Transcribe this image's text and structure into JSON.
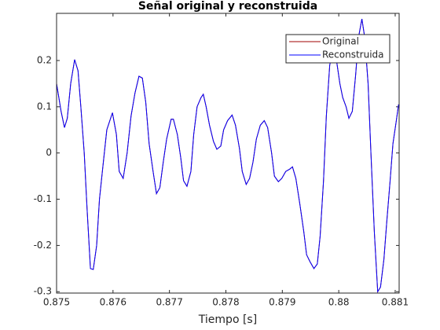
{
  "chart_data": {
    "type": "line",
    "title": "Señal original y reconstruida",
    "xlabel": "Tiempo [s]",
    "x": [
      0.875,
      0.87508,
      0.87514,
      0.87519,
      0.87525,
      0.87532,
      0.87538,
      0.87543,
      0.87549,
      0.87554,
      0.8756,
      0.87565,
      0.87571,
      0.87576,
      0.87582,
      0.87589,
      0.87599,
      0.87606,
      0.87611,
      0.87618,
      0.87625,
      0.87632,
      0.87639,
      0.87646,
      0.87652,
      0.87658,
      0.87664,
      0.87671,
      0.87677,
      0.87683,
      0.87689,
      0.87695,
      0.87703,
      0.87707,
      0.87714,
      0.8772,
      0.87725,
      0.87731,
      0.87738,
      0.87743,
      0.87749,
      0.87756,
      0.8776,
      0.87765,
      0.87771,
      0.87778,
      0.87784,
      0.87791,
      0.87796,
      0.87803,
      0.87811,
      0.87817,
      0.87824,
      0.87829,
      0.87836,
      0.87842,
      0.87848,
      0.87854,
      0.87861,
      0.87868,
      0.87874,
      0.87881,
      0.87886,
      0.87893,
      0.87899,
      0.87906,
      0.87913,
      0.87918,
      0.87924,
      0.87931,
      0.87938,
      0.87943,
      0.87949,
      0.87956,
      0.87962,
      0.87967,
      0.87973,
      0.87978,
      0.87984,
      0.87991,
      0.87996,
      0.88002,
      0.88007,
      0.88013,
      0.88018,
      0.88024,
      0.8803,
      0.88035,
      0.88041,
      0.88046,
      0.88052,
      0.88057,
      0.88063,
      0.88069,
      0.88074,
      0.8808,
      0.88085,
      0.88091,
      0.88096,
      0.88102,
      0.88106
    ],
    "series": [
      {
        "name": "Original",
        "color": "#a00000",
        "values": [
          0.15,
          0.09,
          0.055,
          0.075,
          0.15,
          0.202,
          0.178,
          0.1,
          0.0,
          -0.12,
          -0.25,
          -0.252,
          -0.2,
          -0.1,
          -0.03,
          0.05,
          0.087,
          0.04,
          -0.04,
          -0.055,
          0.0,
          0.08,
          0.13,
          0.166,
          0.162,
          0.11,
          0.02,
          -0.04,
          -0.088,
          -0.075,
          -0.02,
          0.03,
          0.073,
          0.073,
          0.04,
          -0.01,
          -0.06,
          -0.072,
          -0.04,
          0.04,
          0.1,
          0.12,
          0.127,
          0.1,
          0.06,
          0.025,
          0.008,
          0.015,
          0.05,
          0.07,
          0.082,
          0.06,
          0.01,
          -0.04,
          -0.068,
          -0.055,
          -0.02,
          0.03,
          0.06,
          0.07,
          0.055,
          0.0,
          -0.05,
          -0.062,
          -0.055,
          -0.04,
          -0.035,
          -0.03,
          -0.055,
          -0.11,
          -0.17,
          -0.22,
          -0.235,
          -0.25,
          -0.24,
          -0.18,
          -0.06,
          0.08,
          0.19,
          0.23,
          0.2,
          0.15,
          0.12,
          0.1,
          0.075,
          0.09,
          0.17,
          0.25,
          0.29,
          0.25,
          0.15,
          0.0,
          -0.17,
          -0.3,
          -0.29,
          -0.23,
          -0.15,
          -0.06,
          0.02,
          0.07,
          0.105
        ]
      },
      {
        "name": "Reconstruida",
        "color": "#0000ff",
        "values": [
          0.15,
          0.09,
          0.055,
          0.075,
          0.15,
          0.202,
          0.178,
          0.1,
          0.0,
          -0.12,
          -0.25,
          -0.252,
          -0.2,
          -0.1,
          -0.03,
          0.05,
          0.087,
          0.04,
          -0.04,
          -0.055,
          0.0,
          0.08,
          0.13,
          0.166,
          0.162,
          0.11,
          0.02,
          -0.04,
          -0.088,
          -0.075,
          -0.02,
          0.03,
          0.073,
          0.073,
          0.04,
          -0.01,
          -0.06,
          -0.072,
          -0.04,
          0.04,
          0.1,
          0.12,
          0.127,
          0.1,
          0.06,
          0.025,
          0.008,
          0.015,
          0.05,
          0.07,
          0.082,
          0.06,
          0.01,
          -0.04,
          -0.068,
          -0.055,
          -0.02,
          0.03,
          0.06,
          0.07,
          0.055,
          0.0,
          -0.05,
          -0.062,
          -0.055,
          -0.04,
          -0.035,
          -0.03,
          -0.055,
          -0.11,
          -0.17,
          -0.22,
          -0.235,
          -0.25,
          -0.24,
          -0.18,
          -0.06,
          0.08,
          0.19,
          0.23,
          0.2,
          0.15,
          0.12,
          0.1,
          0.075,
          0.09,
          0.17,
          0.25,
          0.29,
          0.25,
          0.15,
          0.0,
          -0.17,
          -0.3,
          -0.29,
          -0.23,
          -0.15,
          -0.06,
          0.02,
          0.07,
          0.105
        ]
      }
    ],
    "xlim": [
      0.875,
      0.88107
    ],
    "xticks": [
      0.875,
      0.876,
      0.877,
      0.878,
      0.879,
      0.88,
      0.881
    ],
    "ylim": [
      -0.303,
      0.302
    ],
    "yticks": [
      -0.3,
      -0.2,
      -0.1,
      0,
      0.1,
      0.2
    ],
    "legend": "top-right",
    "grid": false
  }
}
